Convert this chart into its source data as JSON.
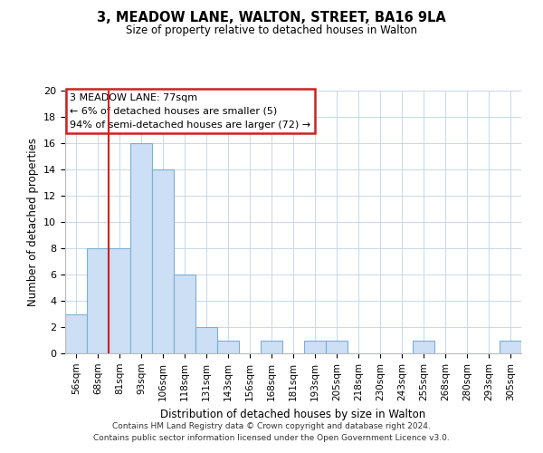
{
  "title": "3, MEADOW LANE, WALTON, STREET, BA16 9LA",
  "subtitle": "Size of property relative to detached houses in Walton",
  "xlabel": "Distribution of detached houses by size in Walton",
  "ylabel": "Number of detached properties",
  "bar_labels": [
    "56sqm",
    "68sqm",
    "81sqm",
    "93sqm",
    "106sqm",
    "118sqm",
    "131sqm",
    "143sqm",
    "156sqm",
    "168sqm",
    "181sqm",
    "193sqm",
    "205sqm",
    "218sqm",
    "230sqm",
    "243sqm",
    "255sqm",
    "268sqm",
    "280sqm",
    "293sqm",
    "305sqm"
  ],
  "bar_values": [
    3,
    8,
    8,
    16,
    14,
    6,
    2,
    1,
    0,
    1,
    0,
    1,
    1,
    0,
    0,
    0,
    1,
    0,
    0,
    0,
    1
  ],
  "bar_color": "#ccdff5",
  "bar_edge_color": "#7aafd4",
  "marker_color": "#cc2222",
  "ylim": [
    0,
    20
  ],
  "yticks": [
    0,
    2,
    4,
    6,
    8,
    10,
    12,
    14,
    16,
    18,
    20
  ],
  "annotation_title": "3 MEADOW LANE: 77sqm",
  "annotation_line1": "← 6% of detached houses are smaller (5)",
  "annotation_line2": "94% of semi-detached houses are larger (72) →",
  "footer_line1": "Contains HM Land Registry data © Crown copyright and database right 2024.",
  "footer_line2": "Contains public sector information licensed under the Open Government Licence v3.0.",
  "bg_color": "#ffffff",
  "grid_color": "#c8d8e8"
}
